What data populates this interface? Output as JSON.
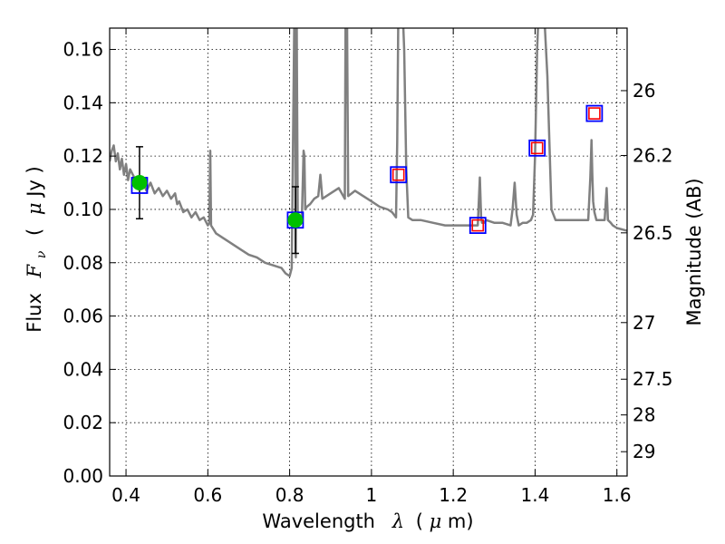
{
  "chart_data": {
    "type": "line",
    "title": "",
    "xlabel": {
      "text": "Wavelength",
      "symbol": "λ",
      "unit_open": "(",
      "unit_mu": "μ",
      "unit_rest": "m)"
    },
    "ylabel": {
      "text": "Flux",
      "symbol": "F",
      "subscript": "ν",
      "unit_open": "(",
      "unit_mu": "μ",
      "unit_rest": "Jy )"
    },
    "y2label": "Magnitude (AB)",
    "xlim": [
      0.36,
      1.625
    ],
    "ylim": [
      0.0,
      0.168
    ],
    "grid": true,
    "x_ticks": [
      0.4,
      0.6,
      0.8,
      1.0,
      1.2,
      1.4,
      1.6
    ],
    "x_tick_labels": [
      "0.4",
      "0.6",
      "0.8",
      "1",
      "1.2",
      "1.4",
      "1.6"
    ],
    "y_ticks": [
      0.0,
      0.02,
      0.04,
      0.06,
      0.08,
      0.1,
      0.12,
      0.14,
      0.16
    ],
    "y_tick_labels": [
      "0.00",
      "0.02",
      "0.04",
      "0.06",
      "0.08",
      "0.10",
      "0.12",
      "0.14",
      "0.16"
    ],
    "y2_ticks": [
      {
        "mag": 26.0,
        "label": "26"
      },
      {
        "mag": 26.2,
        "label": "26.2"
      },
      {
        "mag": 26.5,
        "label": "26.5"
      },
      {
        "mag": 27.0,
        "label": "27"
      },
      {
        "mag": 27.5,
        "label": "27.5"
      },
      {
        "mag": 28.0,
        "label": "28"
      },
      {
        "mag": 29.0,
        "label": "29"
      }
    ],
    "series": [
      {
        "kind": "model-spectrum",
        "color": "#808080",
        "x": [
          0.36,
          0.365,
          0.37,
          0.375,
          0.38,
          0.385,
          0.39,
          0.395,
          0.4,
          0.405,
          0.41,
          0.42,
          0.43,
          0.44,
          0.45,
          0.46,
          0.47,
          0.48,
          0.49,
          0.5,
          0.51,
          0.52,
          0.525,
          0.53,
          0.54,
          0.55,
          0.56,
          0.57,
          0.58,
          0.59,
          0.6,
          0.604,
          0.606,
          0.608,
          0.612,
          0.62,
          0.64,
          0.66,
          0.68,
          0.7,
          0.72,
          0.74,
          0.76,
          0.78,
          0.79,
          0.8,
          0.805,
          0.81,
          0.812,
          0.813,
          0.815,
          0.817,
          0.818,
          0.82,
          0.825,
          0.83,
          0.834,
          0.836,
          0.838,
          0.842,
          0.85,
          0.86,
          0.87,
          0.875,
          0.88,
          0.9,
          0.92,
          0.935,
          0.937,
          0.94,
          0.943,
          0.96,
          0.98,
          1.0,
          1.02,
          1.04,
          1.05,
          1.06,
          1.063,
          1.066,
          1.075,
          1.08,
          1.085,
          1.09,
          1.1,
          1.12,
          1.15,
          1.18,
          1.2,
          1.22,
          1.25,
          1.26,
          1.265,
          1.268,
          1.27,
          1.275,
          1.28,
          1.3,
          1.32,
          1.34,
          1.345,
          1.35,
          1.355,
          1.36,
          1.37,
          1.38,
          1.39,
          1.395,
          1.4,
          1.405,
          1.41,
          1.42,
          1.43,
          1.44,
          1.45,
          1.5,
          1.52,
          1.53,
          1.535,
          1.538,
          1.54,
          1.542,
          1.545,
          1.55,
          1.56,
          1.57,
          1.575,
          1.578,
          1.585,
          1.59,
          1.6,
          1.625
        ],
        "y": [
          0.118,
          0.122,
          0.124,
          0.118,
          0.121,
          0.115,
          0.119,
          0.113,
          0.117,
          0.111,
          0.115,
          0.112,
          0.109,
          0.111,
          0.107,
          0.11,
          0.106,
          0.108,
          0.105,
          0.107,
          0.104,
          0.106,
          0.102,
          0.103,
          0.099,
          0.1,
          0.097,
          0.099,
          0.096,
          0.097,
          0.094,
          0.095,
          0.122,
          0.094,
          0.093,
          0.091,
          0.089,
          0.087,
          0.085,
          0.083,
          0.082,
          0.08,
          0.079,
          0.078,
          0.076,
          0.075,
          0.078,
          0.15,
          0.18,
          0.16,
          0.082,
          0.18,
          0.15,
          0.095,
          0.096,
          0.098,
          0.122,
          0.12,
          0.1,
          0.101,
          0.102,
          0.104,
          0.105,
          0.113,
          0.104,
          0.106,
          0.108,
          0.104,
          0.18,
          0.18,
          0.105,
          0.107,
          0.105,
          0.103,
          0.101,
          0.1,
          0.099,
          0.097,
          0.125,
          0.18,
          0.18,
          0.16,
          0.115,
          0.097,
          0.096,
          0.096,
          0.095,
          0.094,
          0.094,
          0.094,
          0.094,
          0.094,
          0.112,
          0.097,
          0.095,
          0.095,
          0.096,
          0.095,
          0.095,
          0.094,
          0.1,
          0.11,
          0.098,
          0.094,
          0.095,
          0.095,
          0.096,
          0.098,
          0.12,
          0.16,
          0.18,
          0.18,
          0.15,
          0.1,
          0.096,
          0.096,
          0.096,
          0.096,
          0.112,
          0.126,
          0.113,
          0.103,
          0.099,
          0.096,
          0.096,
          0.096,
          0.108,
          0.096,
          0.095,
          0.094,
          0.093,
          0.092
        ]
      },
      {
        "kind": "observed-photometry",
        "marker": "circle",
        "color": "#00c000",
        "points": [
          {
            "x": 0.433,
            "y": 0.11,
            "err": 0.0135
          },
          {
            "x": 0.814,
            "y": 0.096,
            "err": 0.0125
          }
        ]
      },
      {
        "kind": "model-photometry",
        "marker": "square",
        "color": "#0000ff",
        "points": [
          {
            "x": 0.433,
            "y": 0.109
          },
          {
            "x": 0.814,
            "y": 0.096
          },
          {
            "x": 1.066,
            "y": 0.113
          },
          {
            "x": 1.26,
            "y": 0.094
          },
          {
            "x": 1.405,
            "y": 0.123
          },
          {
            "x": 1.545,
            "y": 0.136
          }
        ]
      },
      {
        "kind": "synthetic-photometry",
        "marker": "square",
        "color": "#ff0000",
        "points": [
          {
            "x": 1.066,
            "y": 0.113
          },
          {
            "x": 1.26,
            "y": 0.094
          },
          {
            "x": 1.405,
            "y": 0.123
          },
          {
            "x": 1.545,
            "y": 0.136
          }
        ]
      }
    ]
  }
}
